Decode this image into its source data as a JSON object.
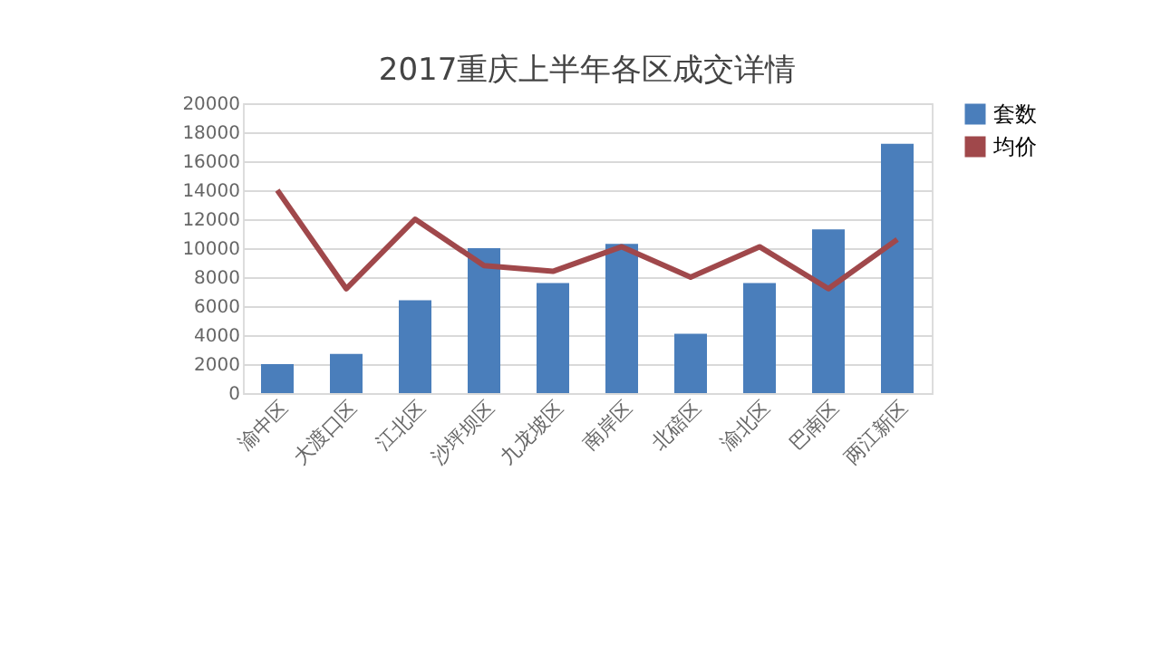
{
  "chart_data": {
    "type": "bar",
    "title": "2017重庆上半年各区成交详情",
    "categories": [
      "渝中区",
      "大渡口区",
      "江北区",
      "沙坪坝区",
      "九龙坡区",
      "南岸区",
      "北碚区",
      "渝北区",
      "巴南区",
      "两江新区"
    ],
    "series": [
      {
        "name": "套数",
        "color": "#4a7ebb",
        "values": [
          2000,
          2700,
          6400,
          10000,
          7600,
          10300,
          4100,
          7600,
          11300,
          17200
        ]
      },
      {
        "name": "均价",
        "type": "line",
        "color": "#a0484b",
        "values": [
          14000,
          7200,
          12000,
          8800,
          8400,
          10100,
          8000,
          10100,
          7200,
          10600
        ]
      }
    ],
    "ylim": [
      0,
      20000
    ],
    "yticks": [
      0,
      2000,
      4000,
      6000,
      8000,
      10000,
      12000,
      14000,
      16000,
      18000,
      20000
    ],
    "grid": "y",
    "legend": "right",
    "marker": "none",
    "line_style": "solid"
  }
}
